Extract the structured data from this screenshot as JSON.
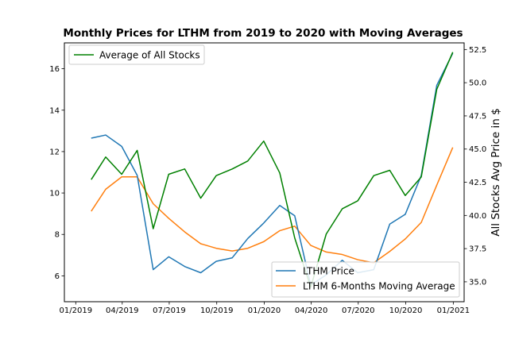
{
  "chart_data": {
    "type": "line",
    "title": "Monthly Prices for LTHM from 2019 to 2020 with Moving Averages",
    "ylabel_left": "",
    "ylabel_right": "All Stocks Avg Price in $",
    "x_tick_labels": [
      "01/2019",
      "04/2019",
      "07/2019",
      "10/2019",
      "01/2020",
      "04/2020",
      "07/2020",
      "10/2020",
      "01/2021"
    ],
    "x_tick_dates": [
      "2019-01-01",
      "2019-04-01",
      "2019-07-01",
      "2019-10-01",
      "2020-01-01",
      "2020-04-01",
      "2020-07-01",
      "2020-10-01",
      "2021-01-01"
    ],
    "xlim": [
      "2018-12-10",
      "2021-01-22"
    ],
    "ylim_left": [
      4.75,
      17.25
    ],
    "ylim_right": [
      33.5,
      53.0
    ],
    "y_ticks_left": [
      6,
      8,
      10,
      12,
      14,
      16
    ],
    "y_ticks_right": [
      "35.0",
      "37.5",
      "40.0",
      "42.5",
      "45.0",
      "47.5",
      "50.0",
      "52.5"
    ],
    "dates": [
      "2019-01-31",
      "2019-02-28",
      "2019-03-31",
      "2019-04-30",
      "2019-05-31",
      "2019-06-30",
      "2019-07-31",
      "2019-08-31",
      "2019-09-30",
      "2019-10-31",
      "2019-11-30",
      "2019-12-31",
      "2020-01-31",
      "2020-02-29",
      "2020-03-31",
      "2020-04-30",
      "2020-05-31",
      "2020-06-30",
      "2020-07-31",
      "2020-08-31",
      "2020-09-30",
      "2020-10-31",
      "2020-11-30",
      "2020-12-31"
    ],
    "series": [
      {
        "name": "LTHM Price",
        "axis": "left",
        "color": "#1f77b4",
        "values": [
          12.65,
          12.8,
          12.25,
          10.85,
          6.3,
          6.92,
          6.45,
          6.15,
          6.7,
          6.87,
          7.8,
          8.55,
          9.4,
          8.9,
          5.55,
          6.05,
          6.75,
          6.15,
          6.3,
          8.5,
          8.97,
          10.85,
          15.2,
          16.75
        ]
      },
      {
        "name": "LTHM 6-Months Moving Average",
        "axis": "left",
        "color": "#ff7f0e",
        "values": [
          9.12,
          10.18,
          10.78,
          10.78,
          9.48,
          8.78,
          8.12,
          7.55,
          7.33,
          7.2,
          7.33,
          7.65,
          8.18,
          8.4,
          7.47,
          7.15,
          7.03,
          6.78,
          6.63,
          7.18,
          7.78,
          8.58,
          10.38,
          12.2
        ]
      },
      {
        "name": "Average of All Stocks",
        "axis": "right",
        "color": "#008000",
        "values": [
          42.7,
          44.4,
          43.1,
          44.9,
          39.0,
          43.1,
          43.5,
          41.3,
          43.0,
          43.5,
          44.1,
          45.6,
          43.2,
          38.3,
          34.6,
          38.6,
          40.5,
          41.1,
          43.0,
          43.4,
          41.5,
          42.9,
          49.5,
          52.3
        ]
      }
    ],
    "legend_left": {
      "placement": "upper-left",
      "entries": [
        "Average of All Stocks"
      ]
    },
    "legend_right": {
      "placement": "lower-right",
      "entries": [
        "LTHM Price",
        "LTHM 6-Months Moving Average"
      ]
    },
    "grid": false
  }
}
